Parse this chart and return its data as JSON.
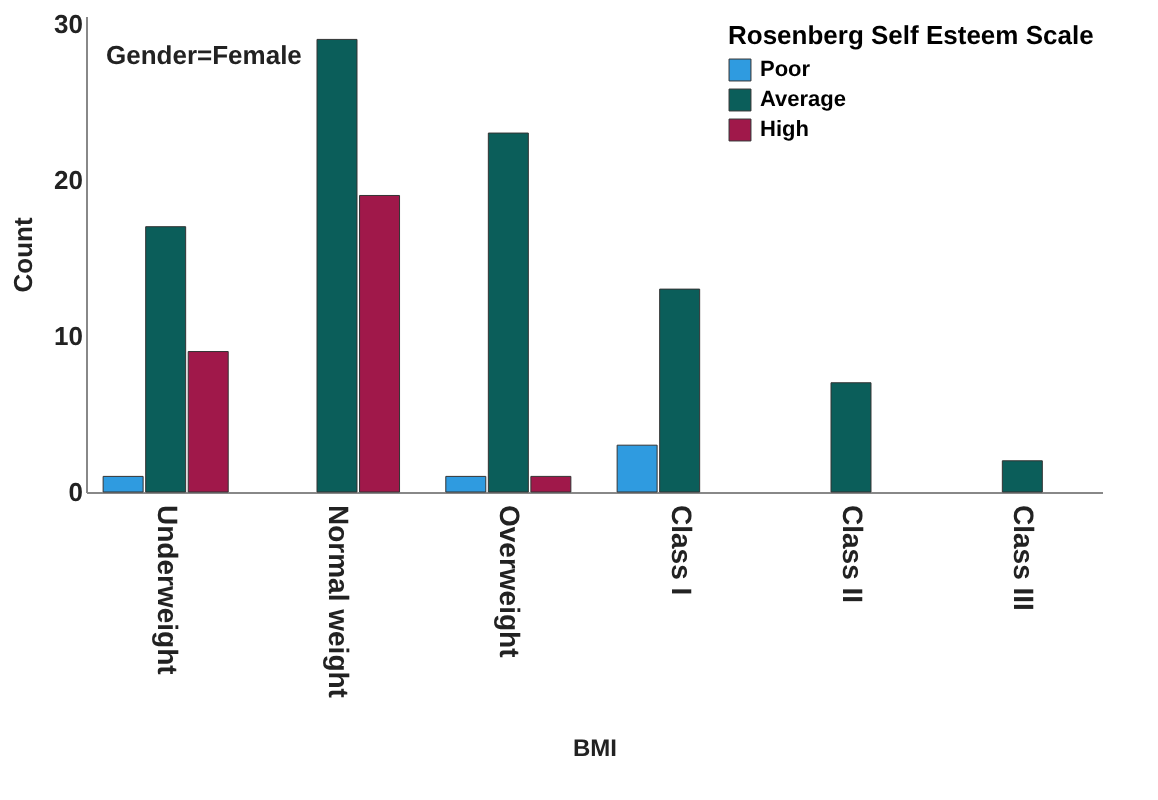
{
  "chart_data": {
    "type": "bar",
    "xlabel": "BMI",
    "ylabel": "Count",
    "legend_title": "Rosenberg Self Esteem Scale",
    "annotations": [
      "Gender=Female"
    ],
    "categories": [
      "Underweight",
      "Normal weight",
      "Overweight",
      "Class I",
      "Class II",
      "Class III"
    ],
    "series": [
      {
        "name": "Poor",
        "color": "#2f9be0",
        "values": [
          1,
          null,
          1,
          3,
          null,
          null
        ]
      },
      {
        "name": "Average",
        "color": "#0b5e5a",
        "values": [
          17,
          29,
          23,
          13,
          7,
          2
        ]
      },
      {
        "name": "High",
        "color": "#a0184a",
        "values": [
          9,
          19,
          1,
          null,
          null,
          null
        ]
      }
    ],
    "ylim": [
      0,
      30.5
    ],
    "yticks": [
      0,
      10,
      20,
      30
    ],
    "grid": false,
    "legend": "top right"
  }
}
